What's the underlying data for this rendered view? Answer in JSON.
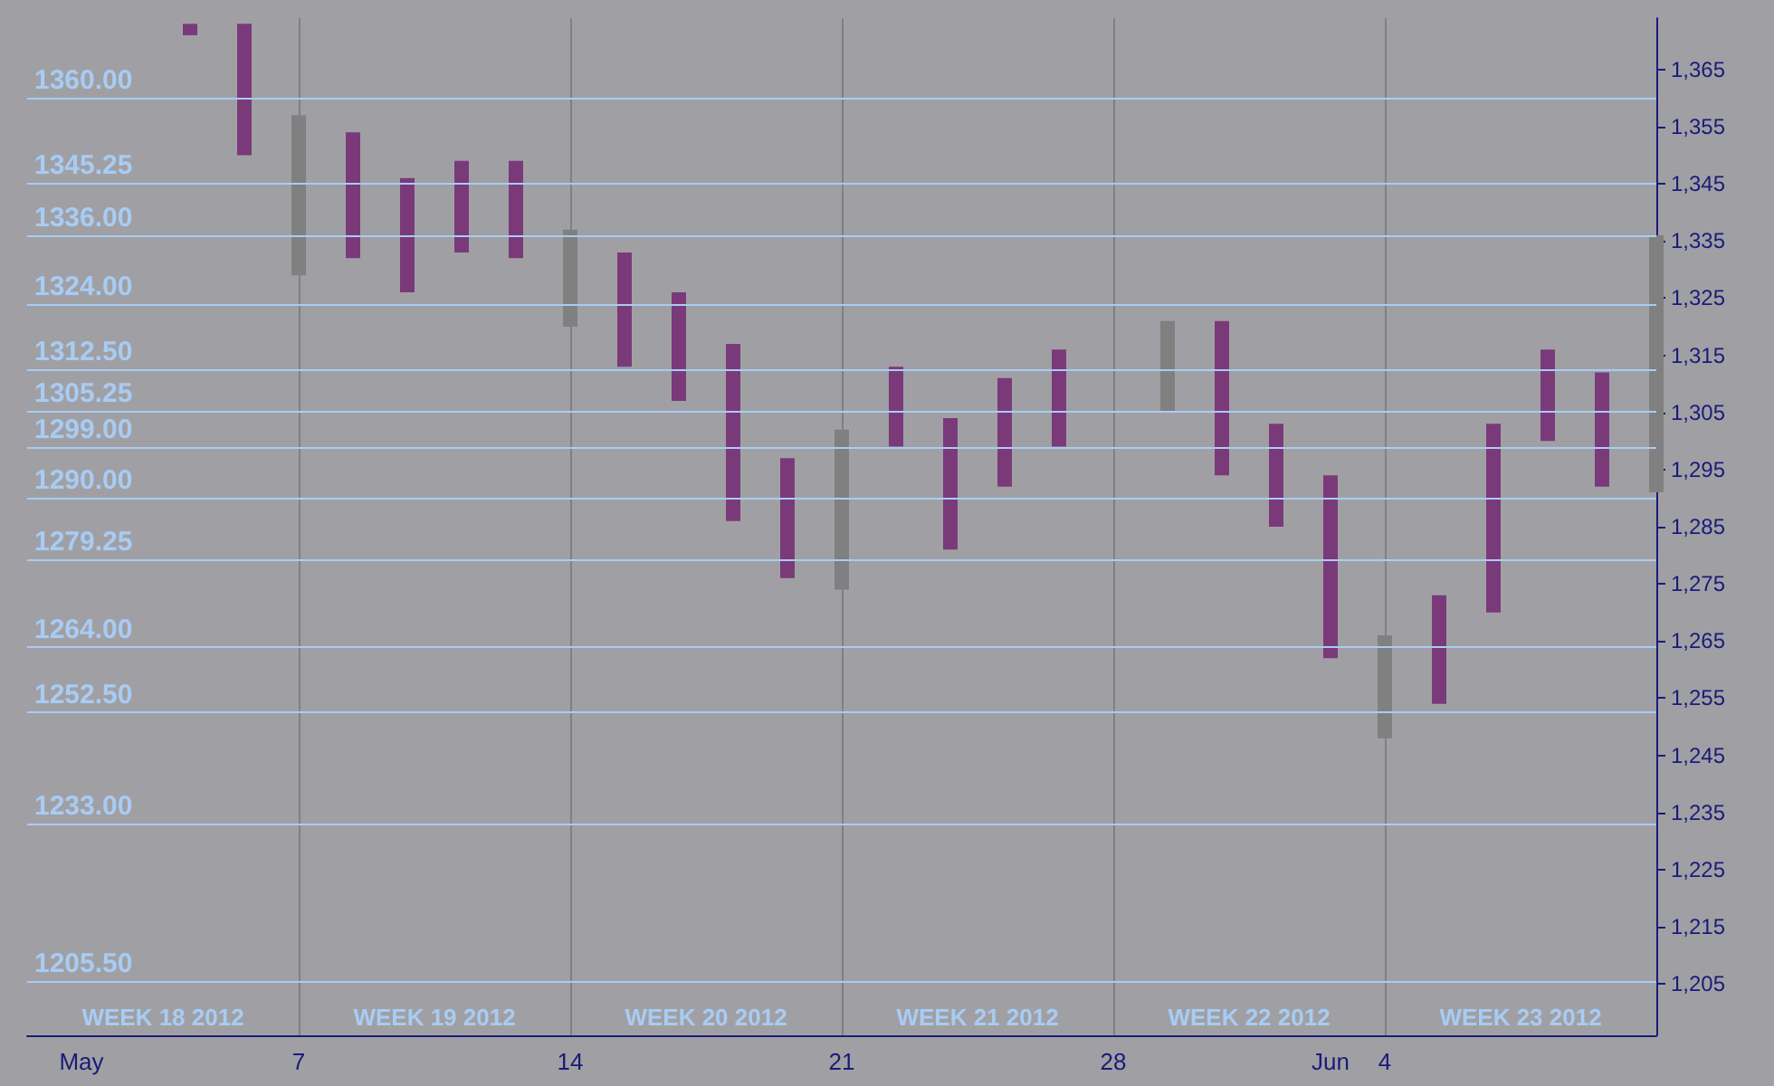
{
  "chart_data": {
    "type": "bar",
    "categories": [
      null,
      "May",
      null,
      null,
      null,
      "7",
      null,
      null,
      null,
      null,
      "14",
      null,
      null,
      null,
      null,
      "21",
      null,
      null,
      null,
      null,
      "28",
      null,
      null,
      null,
      "Jun",
      "4",
      null,
      null,
      null,
      null,
      null
    ],
    "series": [
      {
        "color": "#7a3a7a",
        "base": [
          null,
          null,
          null,
          1371,
          1350,
          null,
          1332,
          1326,
          1333,
          1332,
          null,
          1313,
          1307,
          1286,
          1276,
          null,
          1299,
          1281,
          1292,
          1299,
          null,
          null,
          1294,
          1285,
          1262,
          null,
          1254,
          1270,
          1300,
          1292,
          null
        ],
        "values": [
          null,
          null,
          null,
          2,
          23,
          null,
          22,
          20,
          16,
          17,
          null,
          20,
          19,
          31,
          21,
          null,
          14,
          23,
          19,
          17,
          null,
          null,
          27,
          18,
          32,
          null,
          19,
          33,
          16,
          20,
          null
        ]
      },
      {
        "color": "#808080",
        "base": [
          null,
          null,
          null,
          null,
          null,
          1329,
          null,
          null,
          null,
          null,
          1320,
          null,
          null,
          null,
          null,
          1274,
          null,
          null,
          null,
          null,
          null,
          1305,
          null,
          null,
          null,
          1248,
          null,
          null,
          null,
          null,
          1291
        ],
        "values": [
          null,
          null,
          null,
          null,
          null,
          28,
          null,
          null,
          null,
          null,
          17,
          null,
          null,
          null,
          null,
          28,
          null,
          null,
          null,
          null,
          null,
          16,
          null,
          null,
          null,
          18,
          null,
          null,
          null,
          null,
          45
        ]
      }
    ],
    "ylim": [
      1196,
      1374
    ],
    "yticks": [
      {
        "value": 1205,
        "label": "1,205"
      },
      {
        "value": 1215,
        "label": "1,215"
      },
      {
        "value": 1225,
        "label": "1,225"
      },
      {
        "value": 1235,
        "label": "1,235"
      },
      {
        "value": 1245,
        "label": "1,245"
      },
      {
        "value": 1255,
        "label": "1,255"
      },
      {
        "value": 1265,
        "label": "1,265"
      },
      {
        "value": 1275,
        "label": "1,275"
      },
      {
        "value": 1285,
        "label": "1,285"
      },
      {
        "value": 1295,
        "label": "1,295"
      },
      {
        "value": 1305,
        "label": "1,305"
      },
      {
        "value": 1315,
        "label": "1,315"
      },
      {
        "value": 1325,
        "label": "1,325"
      },
      {
        "value": 1335,
        "label": "1,335"
      },
      {
        "value": 1345,
        "label": "1,345"
      },
      {
        "value": 1355,
        "label": "1,355"
      },
      {
        "value": 1365,
        "label": "1,365"
      }
    ],
    "ref_lines": [
      {
        "axis": "y",
        "value": 1360,
        "label": "1360.00",
        "color": "#a8ccf4"
      },
      {
        "axis": "y",
        "value": 1345.25,
        "label": "1345.25",
        "color": "#a8ccf4"
      },
      {
        "axis": "y",
        "value": 1336,
        "label": "1336.00",
        "color": "#a8ccf4"
      },
      {
        "axis": "y",
        "value": 1324,
        "label": "1324.00",
        "color": "#a8ccf4"
      },
      {
        "axis": "y",
        "value": 1312.5,
        "label": "1312.50",
        "color": "#a8ccf4"
      },
      {
        "axis": "y",
        "value": 1305.25,
        "label": "1305.25",
        "color": "#a8ccf4"
      },
      {
        "axis": "y",
        "value": 1299,
        "label": "1299.00",
        "color": "#a8ccf4"
      },
      {
        "axis": "y",
        "value": 1290,
        "label": "1290.00",
        "color": "#a8ccf4"
      },
      {
        "axis": "y",
        "value": 1279.25,
        "label": "1279.25",
        "color": "#a8ccf4"
      },
      {
        "axis": "y",
        "value": 1264,
        "label": "1264.00",
        "color": "#a8ccf4"
      },
      {
        "axis": "y",
        "value": 1252.5,
        "label": "1252.50",
        "color": "#a8ccf4"
      },
      {
        "axis": "y",
        "value": 1233,
        "label": "1233.00",
        "color": "#a8ccf4"
      },
      {
        "axis": "y",
        "value": 1205.5,
        "label": "1205.50",
        "color": "#a8ccf4"
      },
      {
        "axis": "x",
        "value": "7",
        "label": null,
        "color": "#808084"
      },
      {
        "axis": "x",
        "value": "14",
        "label": null,
        "color": "#808084"
      },
      {
        "axis": "x",
        "value": "21",
        "label": null,
        "color": "#808084"
      },
      {
        "axis": "x",
        "value": "28",
        "label": null,
        "color": "#808084"
      },
      {
        "axis": "x",
        "value": "4",
        "label": null,
        "color": "#808084"
      }
    ],
    "annotations": [
      "WEEK 18 2012",
      "WEEK 19 2012",
      "WEEK 20 2012",
      "WEEK 21 2012",
      "WEEK 22 2012",
      "WEEK 23 2012"
    ],
    "grid": false
  }
}
